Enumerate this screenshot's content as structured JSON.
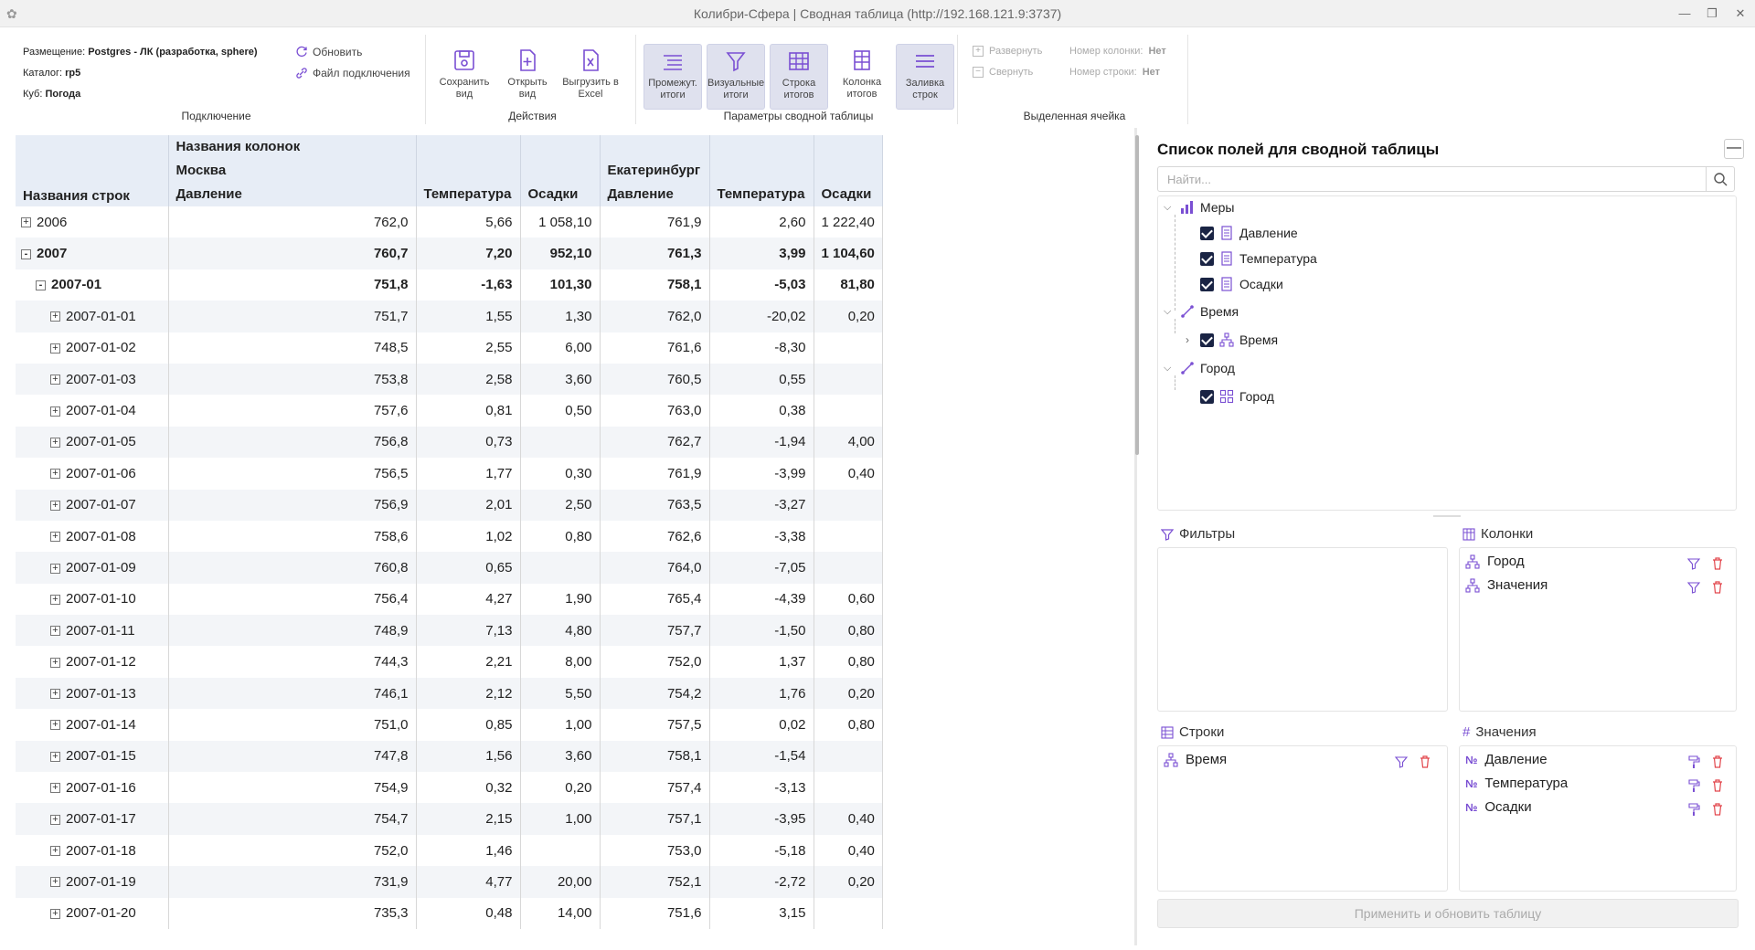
{
  "window": {
    "title": "Колибри-Сфера | Сводная таблица (http://192.168.121.9:3737)",
    "btn_min": "—",
    "btn_max": "❐",
    "btn_close": "✕"
  },
  "ribbon": {
    "connection": {
      "placement_label": "Размещение:",
      "placement_value": "Postgres - ЛК (разработка, sphere)",
      "catalog_label": "Каталог:",
      "catalog_value": "rp5",
      "cube_label": "Куб:",
      "cube_value": "Погода",
      "refresh": "Обновить",
      "conn_file": "Файл подключения",
      "group_label": "Подключение"
    },
    "actions": {
      "save_view": "Сохранить вид",
      "open_view": "Открыть вид",
      "export_excel": "Выгрузить в Excel",
      "group_label": "Действия"
    },
    "pivot_params": {
      "subtotals": "Промежут. итоги",
      "visual_totals": "Визуальные итоги",
      "totals_row": "Строка итогов",
      "totals_col": "Колонка итогов",
      "fill_rows": "Заливка строк",
      "group_label": "Параметры сводной таблицы"
    },
    "selected_cell": {
      "expand": "Развернуть",
      "collapse": "Свернуть",
      "col_num_label": "Номер колонки:",
      "col_num_value": "Нет",
      "row_num_label": "Номер строки:",
      "row_num_value": "Нет",
      "group_label": "Выделенная ячейка"
    }
  },
  "pivot": {
    "header": {
      "row_names": "Названия строк",
      "col_names": "Названия колонок",
      "city1": "Москва",
      "city2": "Екатеринбург",
      "measure_pressure": "Давление",
      "measure_temp": "Температура",
      "measure_precip": "Осадки"
    },
    "rows": [
      {
        "label": "2006",
        "level": 0,
        "toggle": "+",
        "bold": false,
        "v": [
          "762,0",
          "5,66",
          "1 058,10",
          "761,9",
          "2,60",
          "1 222,40"
        ]
      },
      {
        "label": "2007",
        "level": 0,
        "toggle": "-",
        "bold": true,
        "v": [
          "760,7",
          "7,20",
          "952,10",
          "761,3",
          "3,99",
          "1 104,60"
        ]
      },
      {
        "label": "2007-01",
        "level": 1,
        "toggle": "-",
        "bold": true,
        "v": [
          "751,8",
          "-1,63",
          "101,30",
          "758,1",
          "-5,03",
          "81,80"
        ]
      },
      {
        "label": "2007-01-01",
        "level": 2,
        "toggle": "+",
        "bold": false,
        "v": [
          "751,7",
          "1,55",
          "1,30",
          "762,0",
          "-20,02",
          "0,20"
        ]
      },
      {
        "label": "2007-01-02",
        "level": 2,
        "toggle": "+",
        "bold": false,
        "v": [
          "748,5",
          "2,55",
          "6,00",
          "761,6",
          "-8,30",
          ""
        ]
      },
      {
        "label": "2007-01-03",
        "level": 2,
        "toggle": "+",
        "bold": false,
        "v": [
          "753,8",
          "2,58",
          "3,60",
          "760,5",
          "0,55",
          ""
        ]
      },
      {
        "label": "2007-01-04",
        "level": 2,
        "toggle": "+",
        "bold": false,
        "v": [
          "757,6",
          "0,81",
          "0,50",
          "763,0",
          "0,38",
          ""
        ]
      },
      {
        "label": "2007-01-05",
        "level": 2,
        "toggle": "+",
        "bold": false,
        "v": [
          "756,8",
          "0,73",
          "",
          "762,7",
          "-1,94",
          "4,00"
        ]
      },
      {
        "label": "2007-01-06",
        "level": 2,
        "toggle": "+",
        "bold": false,
        "v": [
          "756,5",
          "1,77",
          "0,30",
          "761,9",
          "-3,99",
          "0,40"
        ]
      },
      {
        "label": "2007-01-07",
        "level": 2,
        "toggle": "+",
        "bold": false,
        "v": [
          "756,9",
          "2,01",
          "2,50",
          "763,5",
          "-3,27",
          ""
        ]
      },
      {
        "label": "2007-01-08",
        "level": 2,
        "toggle": "+",
        "bold": false,
        "v": [
          "758,6",
          "1,02",
          "0,80",
          "762,6",
          "-3,38",
          ""
        ]
      },
      {
        "label": "2007-01-09",
        "level": 2,
        "toggle": "+",
        "bold": false,
        "v": [
          "760,8",
          "0,65",
          "",
          "764,0",
          "-7,05",
          ""
        ]
      },
      {
        "label": "2007-01-10",
        "level": 2,
        "toggle": "+",
        "bold": false,
        "v": [
          "756,4",
          "4,27",
          "1,90",
          "765,4",
          "-4,39",
          "0,60"
        ]
      },
      {
        "label": "2007-01-11",
        "level": 2,
        "toggle": "+",
        "bold": false,
        "v": [
          "748,9",
          "7,13",
          "4,80",
          "757,7",
          "-1,50",
          "0,80"
        ]
      },
      {
        "label": "2007-01-12",
        "level": 2,
        "toggle": "+",
        "bold": false,
        "v": [
          "744,3",
          "2,21",
          "8,00",
          "752,0",
          "1,37",
          "0,80"
        ]
      },
      {
        "label": "2007-01-13",
        "level": 2,
        "toggle": "+",
        "bold": false,
        "v": [
          "746,1",
          "2,12",
          "5,50",
          "754,2",
          "1,76",
          "0,20"
        ]
      },
      {
        "label": "2007-01-14",
        "level": 2,
        "toggle": "+",
        "bold": false,
        "v": [
          "751,0",
          "0,85",
          "1,00",
          "757,5",
          "0,02",
          "0,80"
        ]
      },
      {
        "label": "2007-01-15",
        "level": 2,
        "toggle": "+",
        "bold": false,
        "v": [
          "747,8",
          "1,56",
          "3,60",
          "758,1",
          "-1,54",
          ""
        ]
      },
      {
        "label": "2007-01-16",
        "level": 2,
        "toggle": "+",
        "bold": false,
        "v": [
          "754,9",
          "0,32",
          "0,20",
          "757,4",
          "-3,13",
          ""
        ]
      },
      {
        "label": "2007-01-17",
        "level": 2,
        "toggle": "+",
        "bold": false,
        "v": [
          "754,7",
          "2,15",
          "1,00",
          "757,1",
          "-3,95",
          "0,40"
        ]
      },
      {
        "label": "2007-01-18",
        "level": 2,
        "toggle": "+",
        "bold": false,
        "v": [
          "752,0",
          "1,46",
          "",
          "753,0",
          "-5,18",
          "0,40"
        ]
      },
      {
        "label": "2007-01-19",
        "level": 2,
        "toggle": "+",
        "bold": false,
        "v": [
          "731,9",
          "4,77",
          "20,00",
          "752,1",
          "-2,72",
          "0,20"
        ]
      },
      {
        "label": "2007-01-20",
        "level": 2,
        "toggle": "+",
        "bold": false,
        "v": [
          "735,3",
          "0,48",
          "14,00",
          "751,6",
          "3,15",
          ""
        ]
      }
    ]
  },
  "field_list": {
    "title": "Список полей для сводной таблицы",
    "collapse_btn": "—",
    "search_placeholder": "Найти...",
    "tree": {
      "measures": "Меры",
      "m_pressure": "Давление",
      "m_temp": "Температура",
      "m_precip": "Осадки",
      "time_dim": "Время",
      "time_hier": "Время",
      "city_dim": "Город",
      "city_hier": "Город"
    },
    "zones": {
      "filters": "Фильтры",
      "columns": "Колонки",
      "rows": "Строки",
      "values": "Значения",
      "col_items": [
        "Город",
        "Значения"
      ],
      "row_items": [
        "Время"
      ],
      "value_items": [
        "Давление",
        "Температура",
        "Осадки"
      ]
    },
    "apply": "Применить и обновить таблицу"
  },
  "colors": {
    "accent": "#7a4fd3",
    "header_bg": "#e7edf6",
    "active_btn": "#dfe1ee",
    "delete": "#e2454b"
  }
}
